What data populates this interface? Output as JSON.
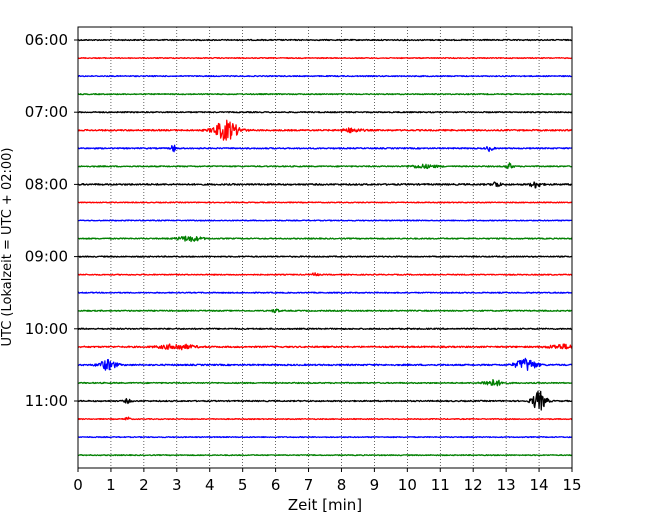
{
  "chart_data": {
    "type": "line",
    "title": "",
    "xlabel": "Zeit  [min]",
    "ylabel": "UTC (Lokalzeit = UTC + 02:00)",
    "xlim": [
      0,
      15
    ],
    "x_ticks": [
      "0",
      "1",
      "2",
      "3",
      "4",
      "5",
      "6",
      "7",
      "8",
      "9",
      "10",
      "11",
      "12",
      "13",
      "14",
      "15"
    ],
    "y_ticks": [
      "06:00",
      "07:00",
      "08:00",
      "09:00",
      "10:00",
      "11:00"
    ],
    "grid": "vertical dotted",
    "trace_minutes_per_line": 15,
    "colors": [
      "#000000",
      "#ff0000",
      "#0000ff",
      "#008000"
    ],
    "traces": [
      {
        "start": "06:00",
        "color": "#000000",
        "noise": 0.55,
        "events": []
      },
      {
        "start": "06:15",
        "color": "#ff0000",
        "noise": 0.45,
        "events": []
      },
      {
        "start": "06:30",
        "color": "#0000ff",
        "noise": 0.5,
        "events": []
      },
      {
        "start": "06:45",
        "color": "#008000",
        "noise": 0.5,
        "events": []
      },
      {
        "start": "07:00",
        "color": "#000000",
        "noise": 0.55,
        "events": []
      },
      {
        "start": "07:15",
        "color": "#ff0000",
        "noise": 0.7,
        "events": [
          {
            "t": 4.5,
            "amp": 4.5,
            "width": 0.35
          },
          {
            "t": 8.3,
            "amp": 0.9,
            "width": 0.3
          }
        ]
      },
      {
        "start": "07:30",
        "color": "#0000ff",
        "noise": 0.6,
        "events": [
          {
            "t": 2.9,
            "amp": 1.5,
            "width": 0.08
          },
          {
            "t": 12.5,
            "amp": 1.2,
            "width": 0.1
          }
        ]
      },
      {
        "start": "07:45",
        "color": "#008000",
        "noise": 0.55,
        "events": [
          {
            "t": 10.5,
            "amp": 0.8,
            "width": 0.4
          },
          {
            "t": 13.1,
            "amp": 1.4,
            "width": 0.1
          }
        ]
      },
      {
        "start": "08:00",
        "color": "#000000",
        "noise": 0.75,
        "events": [
          {
            "t": 12.7,
            "amp": 1.3,
            "width": 0.12
          },
          {
            "t": 13.9,
            "amp": 1.5,
            "width": 0.15
          }
        ]
      },
      {
        "start": "08:15",
        "color": "#ff0000",
        "noise": 0.45,
        "events": []
      },
      {
        "start": "08:30",
        "color": "#0000ff",
        "noise": 0.45,
        "events": []
      },
      {
        "start": "08:45",
        "color": "#008000",
        "noise": 0.55,
        "events": [
          {
            "t": 3.4,
            "amp": 1.2,
            "width": 0.35
          }
        ]
      },
      {
        "start": "09:00",
        "color": "#000000",
        "noise": 0.55,
        "events": []
      },
      {
        "start": "09:15",
        "color": "#ff0000",
        "noise": 0.5,
        "events": [
          {
            "t": 7.2,
            "amp": 0.8,
            "width": 0.1
          }
        ]
      },
      {
        "start": "09:30",
        "color": "#0000ff",
        "noise": 0.5,
        "events": []
      },
      {
        "start": "09:45",
        "color": "#008000",
        "noise": 0.55,
        "events": [
          {
            "t": 6.0,
            "amp": 0.9,
            "width": 0.1
          }
        ]
      },
      {
        "start": "10:00",
        "color": "#000000",
        "noise": 0.6,
        "events": []
      },
      {
        "start": "10:15",
        "color": "#ff0000",
        "noise": 0.7,
        "events": [
          {
            "t": 3.0,
            "amp": 1.2,
            "width": 0.5
          },
          {
            "t": 14.7,
            "amp": 1.0,
            "width": 0.4
          }
        ]
      },
      {
        "start": "10:30",
        "color": "#0000ff",
        "noise": 0.7,
        "events": [
          {
            "t": 0.9,
            "amp": 2.3,
            "width": 0.25
          },
          {
            "t": 13.6,
            "amp": 2.8,
            "width": 0.3
          }
        ]
      },
      {
        "start": "10:45",
        "color": "#008000",
        "noise": 0.55,
        "events": [
          {
            "t": 12.6,
            "amp": 1.4,
            "width": 0.3
          }
        ]
      },
      {
        "start": "11:00",
        "color": "#000000",
        "noise": 0.6,
        "events": [
          {
            "t": 1.5,
            "amp": 0.9,
            "width": 0.1
          },
          {
            "t": 14.0,
            "amp": 4.5,
            "width": 0.2
          }
        ]
      },
      {
        "start": "11:15",
        "color": "#ff0000",
        "noise": 0.45,
        "events": [
          {
            "t": 1.5,
            "amp": 0.9,
            "width": 0.08
          }
        ]
      },
      {
        "start": "11:30",
        "color": "#0000ff",
        "noise": 0.45,
        "events": []
      },
      {
        "start": "11:45",
        "color": "#008000",
        "noise": 0.45,
        "events": []
      }
    ]
  }
}
